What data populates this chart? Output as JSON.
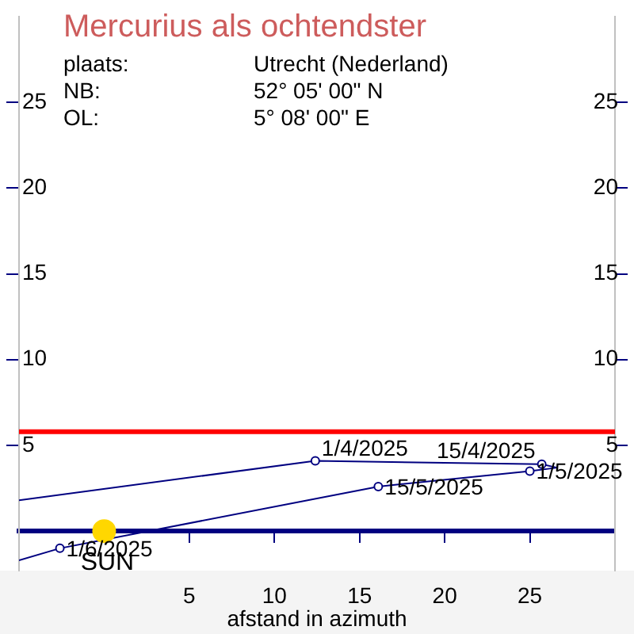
{
  "chart_data": {
    "type": "line",
    "title": "Mercurius als ochtendster",
    "annotations": [
      "plaats:",
      "Utrecht (Nederland)",
      "NB:",
      "52° 05' 00\" N",
      "OL:",
      "5° 08' 00\" E"
    ],
    "xlabel": "afstand in azimuth",
    "xlim": [
      -5,
      30
    ],
    "xticks": [
      5,
      10,
      15,
      20,
      25
    ],
    "ylim": [
      -2.3,
      30
    ],
    "yticks": [
      5,
      10,
      15,
      20,
      25
    ],
    "y2lim": [
      -2.3,
      30
    ],
    "y2ticks": [
      5,
      10,
      15,
      20,
      25
    ],
    "series": [
      {
        "color": "#000080",
        "x": [
          -5,
          12.4,
          25.7,
          26.6,
          25.0,
          16.1,
          -2.6,
          -5
        ],
        "values": [
          1.8,
          4.1,
          3.9,
          3.7,
          3.5,
          2.6,
          -1.0,
          -1.7
        ],
        "value_labels": [
          null,
          "1/4/2025",
          "15/4/2025",
          null,
          "1/5/2025",
          "15/5/2025",
          "1/6/2025",
          null
        ],
        "marker": "circle"
      },
      {
        "type": "scatter",
        "name": "SUN",
        "color": "#ffd700",
        "x": [
          0
        ],
        "values": [
          0
        ]
      }
    ],
    "ref_lines": [
      {
        "axis": "y",
        "value": 5.8,
        "color": "#ff0000"
      }
    ],
    "grid": false,
    "legend": false
  }
}
